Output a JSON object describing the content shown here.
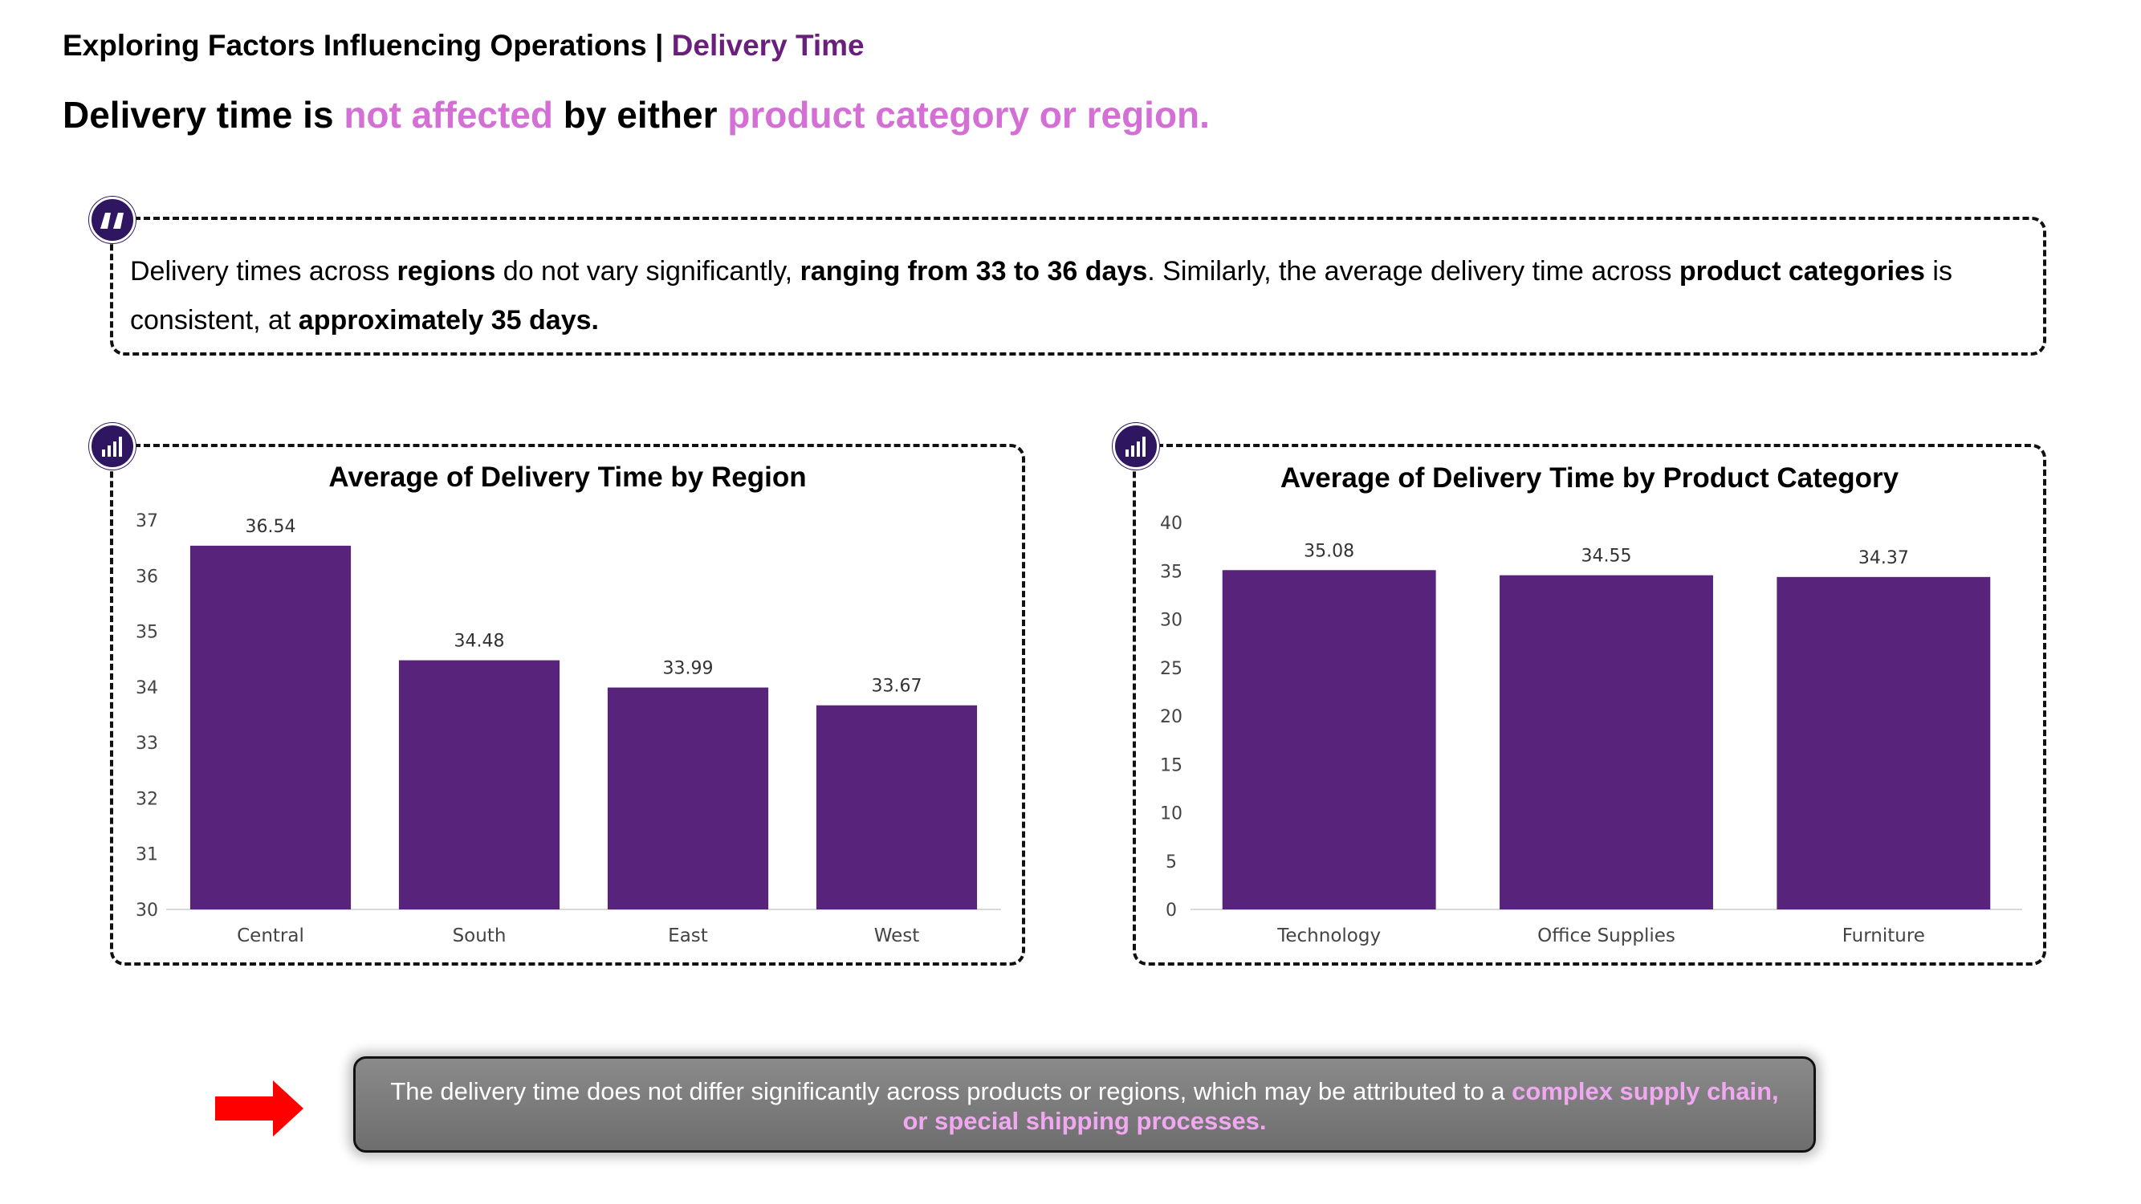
{
  "header": {
    "section": "Exploring Factors Influencing Operations |",
    "topic": "Delivery Time"
  },
  "headline": {
    "part1": "Delivery time is",
    "highlight1": "not affected",
    "part2": "by either",
    "highlight2": "product category or region."
  },
  "insight": {
    "s1": "Delivery times across",
    "b1": "regions",
    "s2": "do not vary significantly,",
    "b2": "ranging from 33 to 36 days",
    "s3": ". Similarly, the average delivery time across",
    "b3": "product categories",
    "s4": "is consistent, at",
    "b4": "approximately 35 days."
  },
  "conclusion": {
    "text": "The delivery time does not differ significantly across products or regions, which may be attributed to a",
    "highlight": "complex supply chain, or special shipping processes."
  },
  "colors": {
    "bar": "#57237b",
    "accent": "#6b1f7c",
    "pink": "#d46fd6",
    "badge": "#2e1760"
  },
  "icons": {
    "quote": "quote-icon",
    "chart": "bar-chart-icon",
    "arrow": "right-arrow-icon"
  },
  "chart_data": [
    {
      "type": "bar",
      "title": "Average of Delivery Time by Region",
      "categories": [
        "Central",
        "South",
        "East",
        "West"
      ],
      "values": [
        36.54,
        34.48,
        33.99,
        33.67
      ],
      "data_labels": [
        "36.54",
        "34.48",
        "33.99",
        "33.67"
      ],
      "ylim": [
        30,
        37
      ],
      "yticks": [
        30,
        31,
        32,
        33,
        34,
        35,
        36,
        37
      ],
      "xlabel": "",
      "ylabel": "",
      "grid": false,
      "legend": "none"
    },
    {
      "type": "bar",
      "title": "Average of Delivery Time by Product Category",
      "categories": [
        "Technology",
        "Office Supplies",
        "Furniture"
      ],
      "values": [
        35.08,
        34.55,
        34.37
      ],
      "data_labels": [
        "35.08",
        "34.55",
        "34.37"
      ],
      "ylim": [
        0,
        40
      ],
      "yticks": [
        0,
        5,
        10,
        15,
        20,
        25,
        30,
        35,
        40
      ],
      "xlabel": "",
      "ylabel": "",
      "grid": false,
      "legend": "none"
    }
  ]
}
